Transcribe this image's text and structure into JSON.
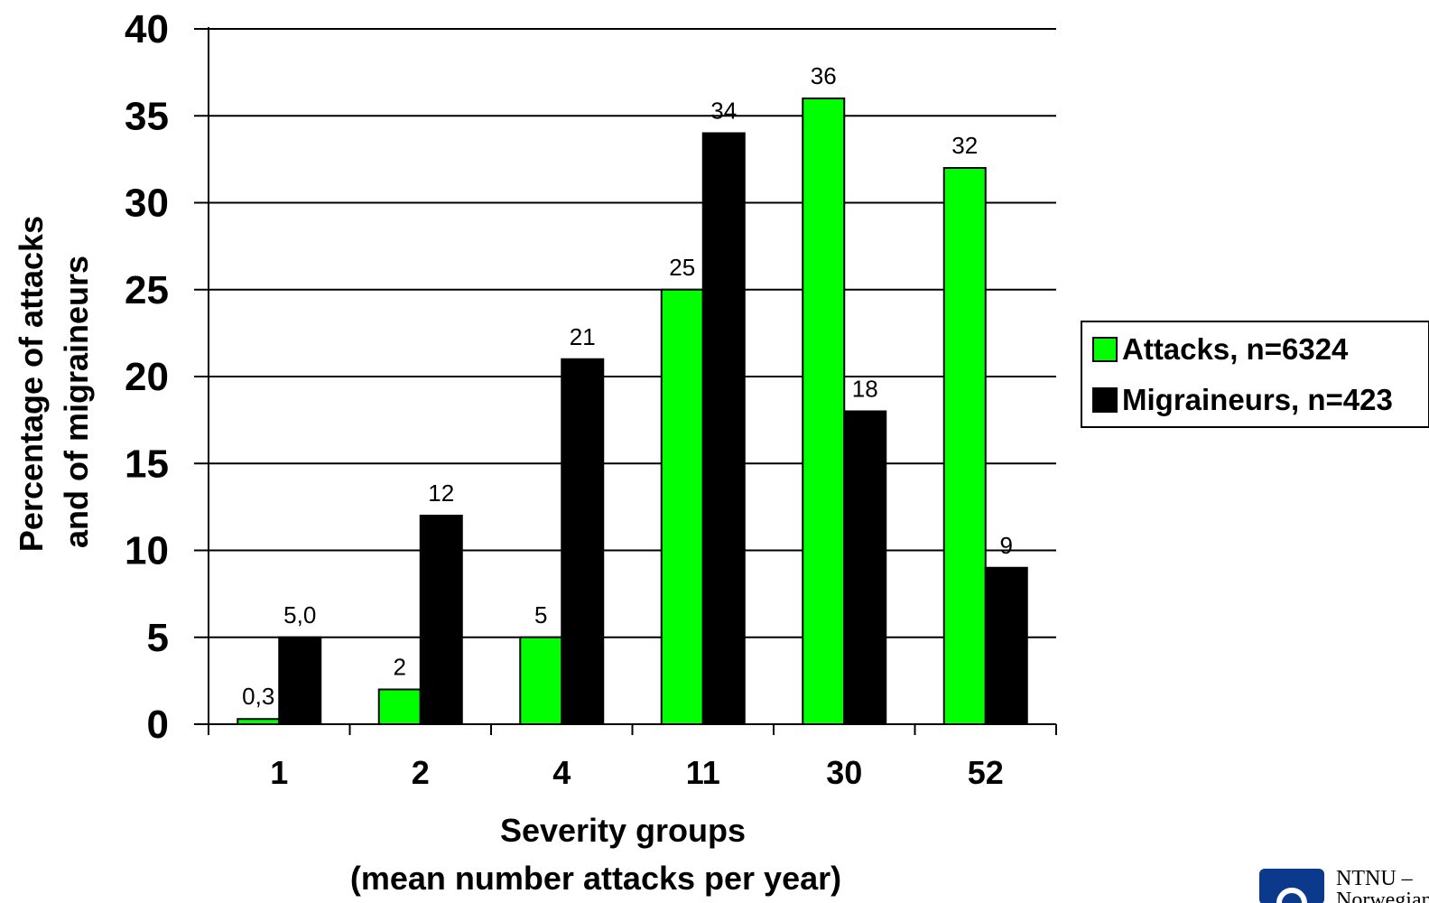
{
  "chart_data": {
    "type": "bar",
    "title": "",
    "categories": [
      "1",
      "2",
      "4",
      "11",
      "30",
      "52"
    ],
    "series": [
      {
        "name": "Attacks, n=6324",
        "color": "#00ff00",
        "values": [
          0.3,
          2,
          5,
          25,
          36,
          32
        ],
        "labels": [
          "0,3",
          "2",
          "5",
          "25",
          "36",
          "32"
        ]
      },
      {
        "name": "Migraineurs, n=423",
        "color": "#000000",
        "values": [
          5.0,
          12,
          21,
          34,
          18,
          9
        ],
        "labels": [
          "5,0",
          "12",
          "21",
          "34",
          "18",
          "9"
        ]
      }
    ],
    "ylim": [
      0,
      40
    ],
    "yticks": [
      "0",
      "5",
      "10",
      "15",
      "20",
      "25",
      "30",
      "35",
      "40"
    ],
    "ylabel_line1": "Percentage of attacks",
    "ylabel_line2": "and of migraineurs",
    "xlabel_line1": "Severity groups",
    "xlabel_line2": "(mean number attacks per year)",
    "grid": true,
    "legend_position": "right"
  },
  "logo": {
    "line1": "NTNU –",
    "line2": "Norwegian"
  }
}
